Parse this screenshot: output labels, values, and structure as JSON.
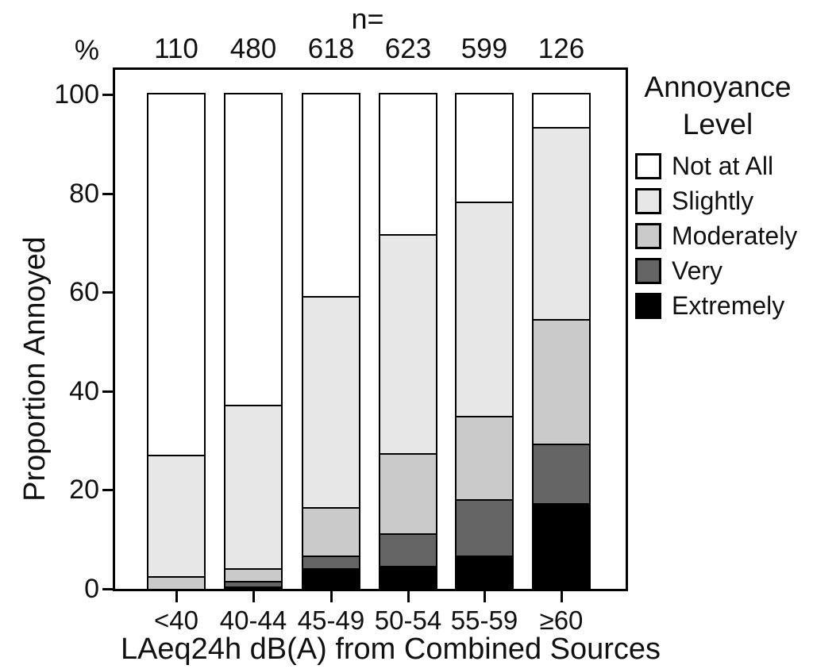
{
  "header": {
    "n_label": "n=",
    "percent_label": "%"
  },
  "y_axis": {
    "title": "Proportion Annoyed",
    "ticks": [
      0,
      20,
      40,
      60,
      80,
      100
    ]
  },
  "x_axis": {
    "title": "LAeq24h dB(A) from Combined Sources"
  },
  "legend": {
    "title_line1": "Annoyance",
    "title_line2": "Level"
  },
  "chart_data": {
    "type": "bar",
    "stacked": true,
    "title": "",
    "xlabel": "LAeq24h dB(A) from Combined Sources",
    "ylabel": "Proportion Annoyed",
    "ylim": [
      0,
      100
    ],
    "grid": false,
    "legend_position": "right",
    "categories": [
      "<40",
      "40-44",
      "45-49",
      "50-54",
      "55-59",
      "≥60"
    ],
    "n_values": [
      110,
      480,
      618,
      623,
      599,
      126
    ],
    "series": [
      {
        "name": "Not at All",
        "color": "#ffffff",
        "values": [
          72.9,
          62.8,
          40.7,
          28.2,
          21.6,
          6.6
        ]
      },
      {
        "name": "Slightly",
        "color": "#e7e7e7",
        "values": [
          24.6,
          33.1,
          42.7,
          44.4,
          43.4,
          38.9
        ]
      },
      {
        "name": "Moderately",
        "color": "#cacaca",
        "values": [
          2.5,
          2.5,
          9.8,
          16.2,
          16.9,
          25.1
        ]
      },
      {
        "name": "Very",
        "color": "#646464",
        "values": [
          0,
          1.2,
          2.7,
          6.6,
          11.3,
          12.1
        ]
      },
      {
        "name": "Extremely",
        "color": "#000000",
        "values": [
          0,
          0.4,
          4.1,
          4.6,
          6.8,
          17.3
        ]
      }
    ]
  }
}
